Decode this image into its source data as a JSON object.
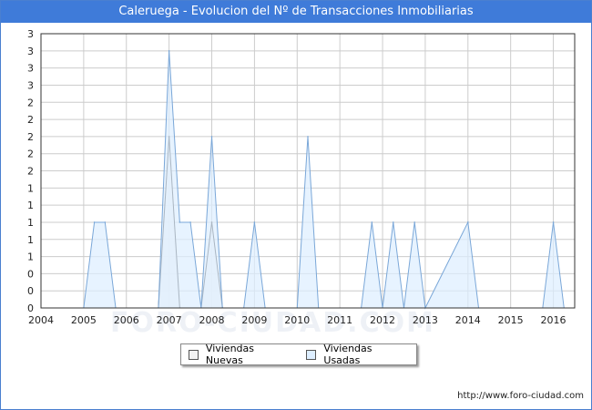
{
  "header": {
    "title": "Caleruega - Evolucion del Nº de Transacciones Inmobiliarias"
  },
  "footer": {
    "url": "http://www.foro-ciudad.com"
  },
  "watermark": {
    "text": "FORO-CIUDAD.COM"
  },
  "colors": {
    "title_bg": "#3f7bd9",
    "nuevas_fill": "#f2f2f2",
    "nuevas_stroke": "#333333",
    "usadas_fill": "#ddeeff",
    "usadas_stroke": "#7aa7d8",
    "grid": "#cccccc"
  },
  "chart_data": {
    "type": "area",
    "title": "Caleruega - Evolucion del Nº de Transacciones Inmobiliarias",
    "xlabel": "",
    "ylabel": "",
    "x_ticks": [
      "2004",
      "2005",
      "2006",
      "2007",
      "2008",
      "2009",
      "2010",
      "2011",
      "2012",
      "2013",
      "2014",
      "2015",
      "2016"
    ],
    "y_ticks": [
      "0",
      "0",
      "0",
      "1",
      "1",
      "1",
      "1",
      "1",
      "2",
      "2",
      "2",
      "2",
      "2",
      "3",
      "3",
      "3",
      "3"
    ],
    "y_tick_values": [
      0,
      0.2,
      0.4,
      0.6,
      0.8,
      1.0,
      1.2,
      1.4,
      1.6,
      1.8,
      2.0,
      2.2,
      2.4,
      2.6,
      2.8,
      3.0,
      3.2
    ],
    "xlim": [
      2004,
      2016.5
    ],
    "ylim": [
      0,
      3.2
    ],
    "grid": true,
    "legend_position": "bottom-center",
    "series": [
      {
        "name": "Viviendas Nuevas",
        "points": [
          [
            2004.0,
            0
          ],
          [
            2006.75,
            0
          ],
          [
            2007.0,
            2
          ],
          [
            2007.25,
            0
          ],
          [
            2007.75,
            0
          ],
          [
            2008.0,
            1
          ],
          [
            2008.25,
            0
          ],
          [
            2016.25,
            0
          ]
        ]
      },
      {
        "name": "Viviendas Usadas",
        "points": [
          [
            2004.0,
            0
          ],
          [
            2005.0,
            0
          ],
          [
            2005.25,
            1
          ],
          [
            2005.5,
            1
          ],
          [
            2005.75,
            0
          ],
          [
            2006.75,
            0
          ],
          [
            2007.0,
            3
          ],
          [
            2007.25,
            1
          ],
          [
            2007.5,
            1
          ],
          [
            2007.75,
            0
          ],
          [
            2008.0,
            2
          ],
          [
            2008.25,
            0
          ],
          [
            2008.75,
            0
          ],
          [
            2009.0,
            1
          ],
          [
            2009.25,
            0
          ],
          [
            2010.0,
            0
          ],
          [
            2010.25,
            2
          ],
          [
            2010.5,
            0
          ],
          [
            2011.5,
            0
          ],
          [
            2011.75,
            1
          ],
          [
            2012.0,
            0
          ],
          [
            2012.25,
            1
          ],
          [
            2012.5,
            0
          ],
          [
            2012.75,
            1
          ],
          [
            2013.0,
            0
          ],
          [
            2014.0,
            1
          ],
          [
            2014.25,
            0
          ],
          [
            2015.75,
            0
          ],
          [
            2016.0,
            1
          ],
          [
            2016.25,
            0
          ]
        ]
      }
    ]
  }
}
